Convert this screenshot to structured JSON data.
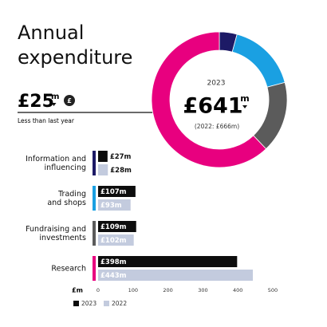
{
  "title": "Annual\nexpenditure",
  "summary": {
    "amount": "£25",
    "unit": "m",
    "icon": "£",
    "note": "Less than last year"
  },
  "chart_data": [
    {
      "type": "donut",
      "year": "2023",
      "total": "£641",
      "total_unit": "m",
      "comparison": "(2022: £666m)",
      "values": [
        27,
        107,
        109,
        398
      ],
      "colors": [
        "#1d1a66",
        "#1aa0e2",
        "#5b5b5b",
        "#e8007f"
      ]
    },
    {
      "type": "hbar",
      "categories": [
        "Information and\ninfluencing",
        "Trading\nand shops",
        "Fundraising and\ninvestments",
        "Research"
      ],
      "category_colors": [
        "#1d1a66",
        "#1aa0e2",
        "#5b5b5b",
        "#e8007f"
      ],
      "series": [
        {
          "name": "2023",
          "color": "#0d0d0d",
          "label_color": "#ffffff",
          "values": [
            27,
            107,
            109,
            398
          ],
          "value_labels": [
            "£27m",
            "£107m",
            "£109m",
            "£398m"
          ]
        },
        {
          "name": "2022",
          "color": "#c3cbde",
          "label_color": "#ffffff",
          "values": [
            28,
            93,
            102,
            443
          ],
          "value_labels": [
            "£28m",
            "£93m",
            "£102m",
            "£443m"
          ]
        }
      ],
      "xlim": [
        0,
        500
      ],
      "xticks": [
        0,
        100,
        200,
        300,
        400,
        500
      ],
      "xlabel": "£m"
    }
  ]
}
